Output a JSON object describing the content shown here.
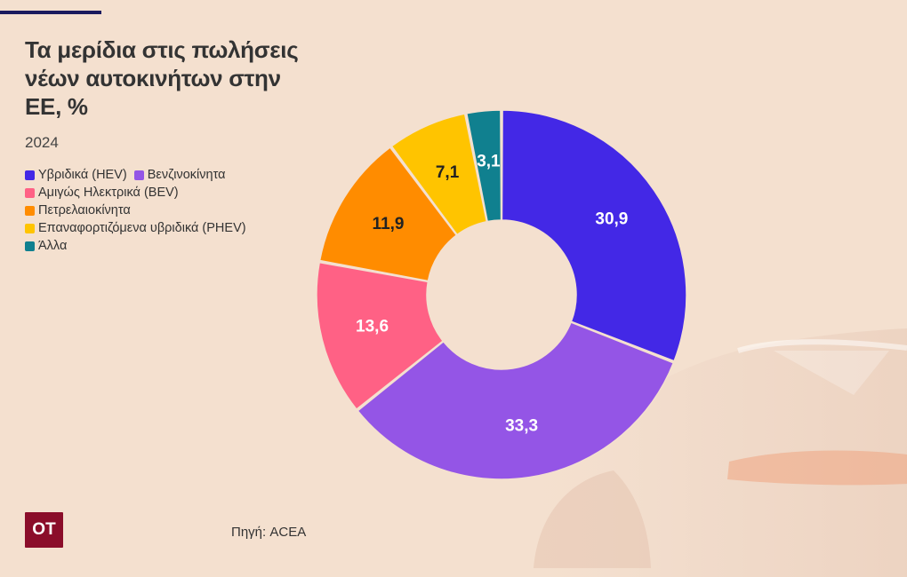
{
  "header": {
    "title": "Τα μερίδια στις πωλήσεις νέων αυτοκινήτων στην ΕΕ, %",
    "subtitle": "2024"
  },
  "footer": {
    "logo_text": "OT",
    "source": "Πηγή: ACEA"
  },
  "chart_data": {
    "type": "pie",
    "variant": "donut",
    "title": "Τα μερίδια στις πωλήσεις νέων αυτοκινήτων στην ΕΕ, %",
    "subtitle": "2024",
    "legend_position": "top-left",
    "categories": [
      "Υβριδικά (HEV)",
      "Βενζινοκίνητα",
      "Αμιγώς Ηλεκτρικά (BEV)",
      "Πετρελαιοκίνητα",
      "Επαναφορτιζόμενα υβριδικά (PHEV)",
      "Άλλα"
    ],
    "values": [
      30.9,
      33.3,
      13.6,
      11.9,
      7.1,
      3.1
    ],
    "labels": [
      "30,9",
      "33,3",
      "13,6",
      "11,9",
      "7,1",
      "3,1"
    ],
    "colors": [
      "#4328e6",
      "#9455e6",
      "#ff6185",
      "#ff8c00",
      "#ffc400",
      "#10808f"
    ],
    "label_colors": [
      "#ffffff",
      "#ffffff",
      "#ffffff",
      "#222222",
      "#222222",
      "#ffffff"
    ]
  }
}
